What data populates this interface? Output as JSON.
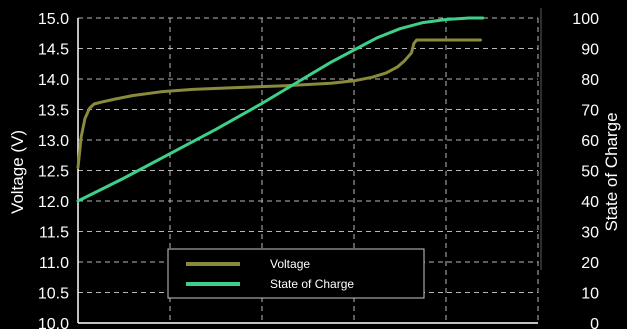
{
  "chart_data": {
    "type": "line",
    "title": "",
    "xlabel": "",
    "ylabel": "Voltage (V)",
    "y2label": "State of Charge",
    "ylim": [
      10.0,
      15.0
    ],
    "y2lim": [
      0,
      100
    ],
    "xlim": [
      0,
      100
    ],
    "y_ticks": [
      "10.0",
      "10.5",
      "11.0",
      "11.5",
      "12.0",
      "12.5",
      "13.0",
      "13.5",
      "14.0",
      "14.5",
      "15.0"
    ],
    "y2_ticks": [
      "0",
      "10",
      "20",
      "30",
      "40",
      "50",
      "60",
      "70",
      "80",
      "90",
      "100"
    ],
    "grid": true,
    "legend_position": "bottom-center",
    "series": [
      {
        "name": "Voltage",
        "axis": "left",
        "color": "#8a8a3c",
        "x": [
          0,
          0.7,
          1.5,
          2.5,
          3.5,
          5,
          8,
          12,
          18,
          25,
          35,
          45,
          55,
          60,
          64,
          67,
          69.5,
          71,
          72.5,
          73,
          73.6,
          74.2,
          80,
          85,
          87.5
        ],
        "y": [
          12.55,
          13.05,
          13.35,
          13.52,
          13.59,
          13.62,
          13.67,
          13.73,
          13.79,
          13.83,
          13.86,
          13.89,
          13.93,
          13.97,
          14.03,
          14.1,
          14.2,
          14.3,
          14.43,
          14.58,
          14.64,
          14.64,
          14.64,
          14.64,
          14.64
        ]
      },
      {
        "name": "State of Charge",
        "axis": "right",
        "color": "#3ed089",
        "x": [
          0,
          10,
          20,
          30,
          40,
          50,
          55,
          60,
          65,
          70,
          75,
          80,
          85,
          88
        ],
        "y": [
          40,
          47.5,
          55.5,
          63.5,
          72,
          81,
          85.5,
          89.5,
          93.5,
          96.5,
          98.5,
          99.5,
          100,
          100
        ]
      }
    ]
  }
}
